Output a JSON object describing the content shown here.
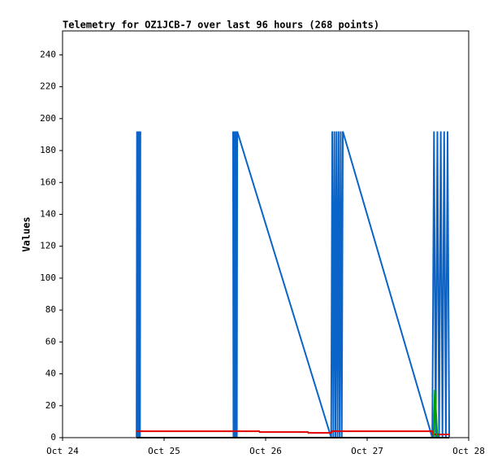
{
  "chart_data": {
    "type": "line",
    "title": "Telemetry for OZ1JCB-7 over last 96 hours (268 points)",
    "y_label": "Values",
    "xlim": [
      0,
      96
    ],
    "xticks": [
      {
        "value": 0,
        "label": "Oct 24"
      },
      {
        "value": 24,
        "label": "Oct 25"
      },
      {
        "value": 48,
        "label": "Oct 26"
      },
      {
        "value": 72,
        "label": "Oct 27"
      },
      {
        "value": 96,
        "label": "Oct 28"
      }
    ],
    "ylim": [
      0,
      255
    ],
    "yticks": [
      0,
      20,
      40,
      60,
      80,
      100,
      120,
      140,
      160,
      180,
      200,
      220,
      240
    ],
    "series": [
      {
        "color": "#0a64c8",
        "x": [
          17.5,
          17.6,
          17.7,
          17.8,
          17.9,
          18.0,
          18.1,
          18.2,
          18.3,
          18.4,
          29,
          40.3,
          40.4,
          40.5,
          40.6,
          40.7,
          40.8,
          40.9,
          41.0,
          41.1,
          41.2,
          41.3,
          63.5,
          63.75,
          64.0,
          64.25,
          64.5,
          64.75,
          65.0,
          65.25,
          65.5,
          65.75,
          66.0,
          66.25,
          87.4,
          87.8,
          88.2,
          88.6,
          89.0,
          89.4,
          89.8,
          90.2,
          90.6,
          91.0,
          91.4
        ],
        "values": [
          0,
          192,
          0,
          192,
          0,
          192,
          0,
          192,
          0,
          192,
          null,
          192,
          0,
          192,
          0,
          192,
          0,
          192,
          0,
          192,
          0,
          192,
          0,
          192,
          0,
          192,
          0,
          192,
          0,
          192,
          0,
          192,
          0,
          192,
          0,
          192,
          0,
          192,
          0,
          192,
          0,
          192,
          0,
          192,
          0
        ]
      },
      {
        "color": "#e00000",
        "x": [
          17.5,
          46.5,
          46.6,
          58.0,
          58.1,
          63.5,
          63.6,
          87.5,
          87.6,
          91.4
        ],
        "values": [
          4,
          4,
          3.5,
          3.5,
          3,
          3,
          4,
          4,
          2,
          2
        ]
      },
      {
        "color": "#00a000",
        "x": [
          87.7,
          88.0,
          88.6
        ],
        "values": [
          0,
          30,
          0
        ]
      },
      {
        "color": "#000000",
        "x": [
          17.5,
          91.4
        ],
        "values": [
          0,
          0
        ]
      }
    ]
  }
}
